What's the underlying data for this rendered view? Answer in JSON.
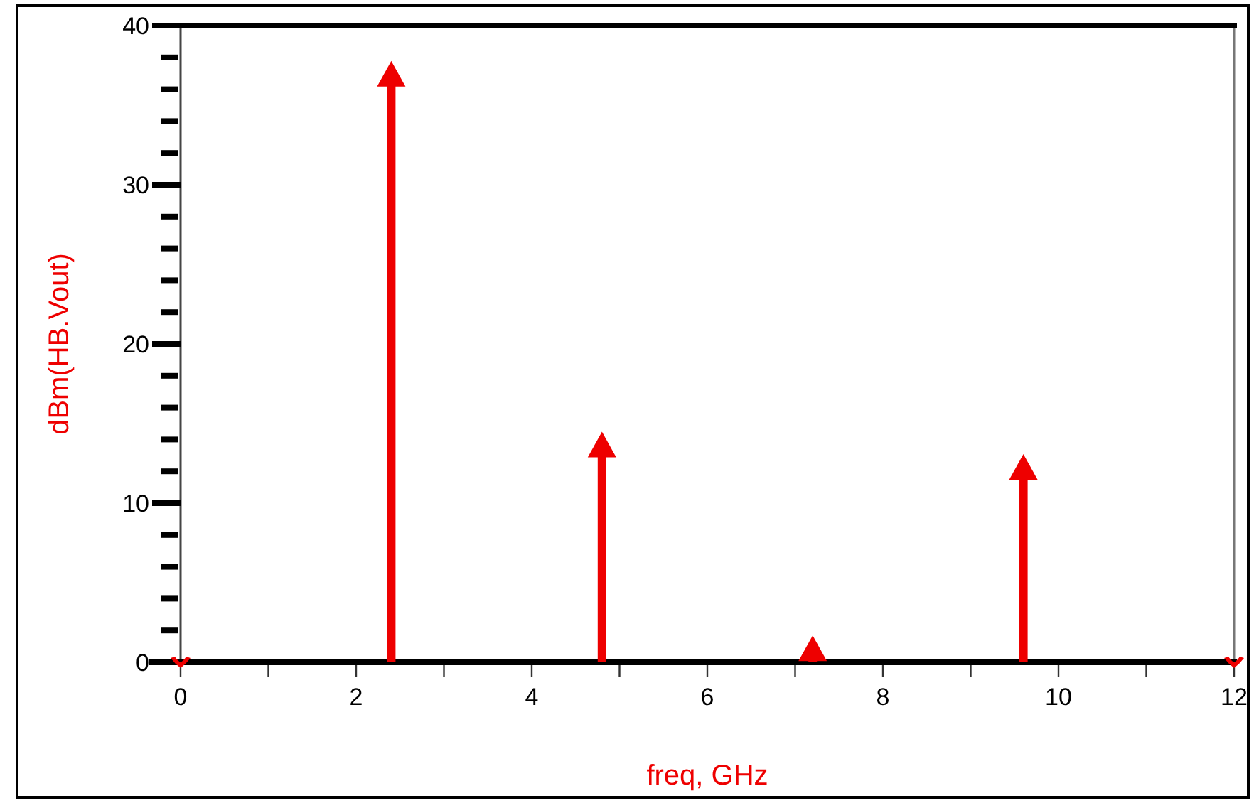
{
  "chart_data": {
    "type": "lollipop",
    "xlabel": "freq, GHz",
    "ylabel": "dBm(HB.Vout)",
    "x": [
      0,
      2.4,
      4.8,
      7.2,
      9.6,
      12
    ],
    "series": [
      {
        "color": "#ee0000",
        "values": [
          0,
          36.8,
          13.5,
          0.7,
          12.1,
          0
        ]
      }
    ],
    "xlim": [
      0,
      12
    ],
    "xticks": [
      0,
      {
        "value": 1,
        "label": null
      },
      2,
      {
        "value": 3,
        "label": null
      },
      4,
      {
        "value": 5,
        "label": null
      },
      6,
      {
        "value": 7,
        "label": null
      },
      8,
      {
        "value": 9,
        "label": null
      },
      10,
      {
        "value": 11,
        "label": null
      },
      12
    ],
    "ylim": [
      0,
      40
    ],
    "yticks": [
      0,
      {
        "value": 2,
        "label": null
      },
      {
        "value": 4,
        "label": null
      },
      {
        "value": 6,
        "label": null
      },
      {
        "value": 8,
        "label": null
      },
      10,
      {
        "value": 12,
        "label": null
      },
      {
        "value": 14,
        "label": null
      },
      {
        "value": 16,
        "label": null
      },
      {
        "value": 18,
        "label": null
      },
      20,
      {
        "value": 22,
        "label": null
      },
      {
        "value": 24,
        "label": null
      },
      {
        "value": 26,
        "label": null
      },
      {
        "value": 28,
        "label": null
      },
      30,
      {
        "value": 32,
        "label": null
      },
      {
        "value": 34,
        "label": null
      },
      {
        "value": 36,
        "label": null
      },
      {
        "value": 38,
        "label": null
      },
      40
    ],
    "marker": "triangle",
    "grid": false
  }
}
